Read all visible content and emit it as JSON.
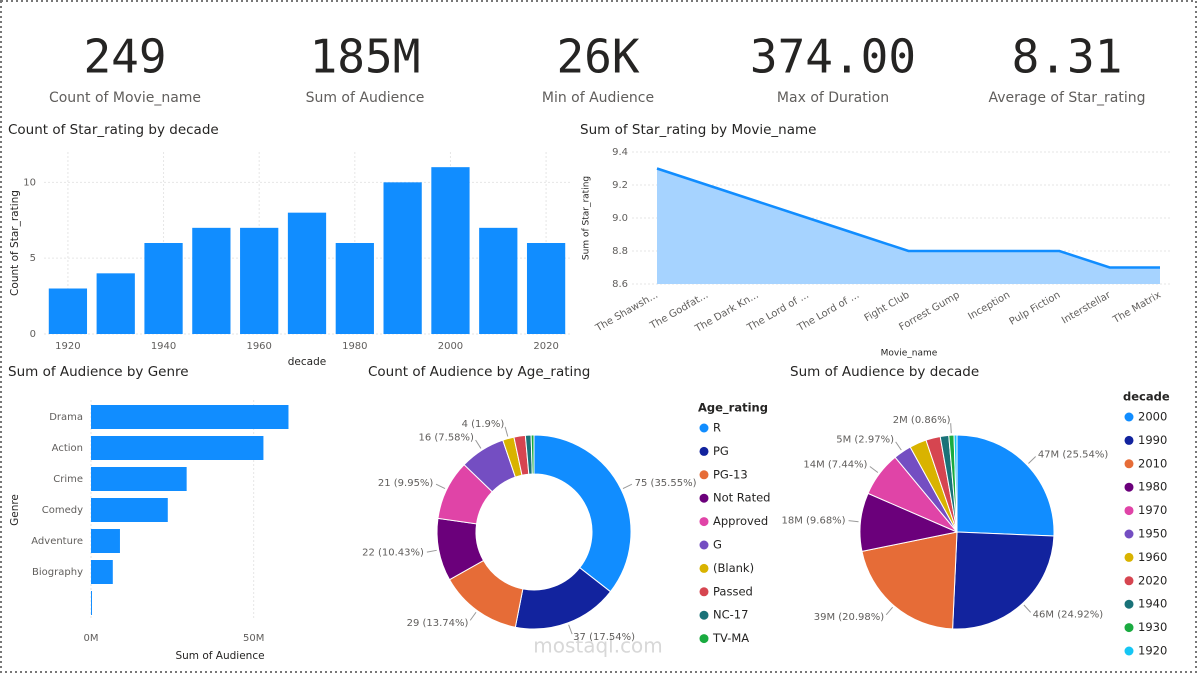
{
  "cards": [
    {
      "value": "249",
      "label": "Count of Movie_name"
    },
    {
      "value": "185M",
      "label": "Sum of Audience"
    },
    {
      "value": "26K",
      "label": "Min of Audience"
    },
    {
      "value": "374.00",
      "label": "Max of Duration"
    },
    {
      "value": "8.31",
      "label": "Average of Star_rating"
    }
  ],
  "watermark": "mostaql.com",
  "chart_data": [
    {
      "type": "bar",
      "title": "Count of Star_rating by decade",
      "x_label": "decade",
      "y_label": "Count of Star_rating",
      "x": [
        1920,
        1930,
        1940,
        1950,
        1960,
        1970,
        1980,
        1990,
        2000,
        2010,
        2020
      ],
      "values": [
        3,
        4,
        6,
        7,
        7,
        8,
        6,
        10,
        11,
        7,
        6
      ],
      "color": "#118DFF",
      "xlim": [
        1915,
        2025
      ],
      "xticks": [
        1920,
        1940,
        1960,
        1980,
        2000,
        2020
      ],
      "ylim": [
        0,
        12
      ],
      "yticks": [
        0,
        5,
        10
      ],
      "grid": true
    },
    {
      "type": "area",
      "title": "Sum of Star_rating by Movie_name",
      "x_label": "Movie_name",
      "y_label": "Sum of Star_rating",
      "categories": [
        "The Shawsh...",
        "The Godfat...",
        "The Dark Kn...",
        "The Lord of ...",
        "The Lord of ...",
        "Fight Club",
        "Forrest Gump",
        "Inception",
        "Pulp Fiction",
        "Interstellar",
        "The Matrix"
      ],
      "values": [
        9.3,
        9.2,
        9.1,
        9.0,
        8.9,
        8.8,
        8.8,
        8.8,
        8.8,
        8.7,
        8.7
      ],
      "color": "#118DFF",
      "fill": "#A6D3FF",
      "ylim": [
        8.6,
        9.4
      ],
      "yticks": [
        8.6,
        8.8,
        {
          "value": 9,
          "label": "9.0"
        },
        9.2,
        9.4
      ],
      "grid": true
    },
    {
      "type": "hbar",
      "title": "Sum of Audience by Genre",
      "x_label": "Sum of Audience",
      "y_label": "Genre",
      "categories": [
        "Drama",
        "Action",
        "Crime",
        "Comedy",
        "Adventure",
        "Biography",
        null
      ],
      "values": [
        60700000,
        53000000,
        29400000,
        23600000,
        8900000,
        6700000,
        300000
      ],
      "color": "#118DFF",
      "xlim": [
        0,
        75000000
      ],
      "xticks": [
        {
          "value": 0,
          "label": "0M"
        },
        {
          "value": 50000000,
          "label": "50M"
        }
      ],
      "grid": true
    },
    {
      "type": "donut",
      "title": "Count of Audience by Age_rating",
      "legend_title": "Age_rating",
      "legend": "right",
      "categories": [
        "R",
        "PG",
        "PG-13",
        "Not Rated",
        "Approved",
        "G",
        "(Blank)",
        "Passed",
        "NC-17",
        "TV-MA"
      ],
      "values": [
        75,
        37,
        29,
        22,
        21,
        16,
        4,
        4,
        2,
        1
      ],
      "value_labels": [
        "75 (35.55%)",
        "37 (17.54%)",
        "29 (13.74%)",
        "22 (10.43%)",
        "21 (9.95%)",
        "16 (7.58%)",
        "4 (1.9%)",
        null,
        null,
        null
      ],
      "colors": [
        "#118DFF",
        "#12239E",
        "#E66C37",
        "#6B007B",
        "#E044A7",
        "#744EC2",
        "#D9B300",
        "#D64550",
        "#197278",
        "#1AAB40"
      ]
    },
    {
      "type": "pie",
      "title": "Sum of Audience by decade",
      "legend_title": "decade",
      "legend": "right",
      "categories": [
        "2000",
        "1990",
        "2010",
        "1980",
        "1970",
        "1950",
        "1960",
        "2020",
        "1940",
        "1930",
        "1920"
      ],
      "values": [
        47000000,
        45900000,
        38600000,
        17800000,
        13700000,
        5470000,
        5200000,
        4400000,
        2600000,
        1580000,
        900000
      ],
      "value_labels": [
        "47M (25.54%)",
        "46M (24.92%)",
        "39M (20.98%)",
        "18M (9.68%)",
        "14M (7.44%)",
        "5M (2.97%)",
        null,
        null,
        null,
        "2M (0.86%)",
        null
      ],
      "colors": [
        "#118DFF",
        "#12239E",
        "#E66C37",
        "#6B007B",
        "#E044A7",
        "#744EC2",
        "#D9B300",
        "#D64550",
        "#197278",
        "#1AAB40",
        "#15C6F4"
      ]
    }
  ]
}
